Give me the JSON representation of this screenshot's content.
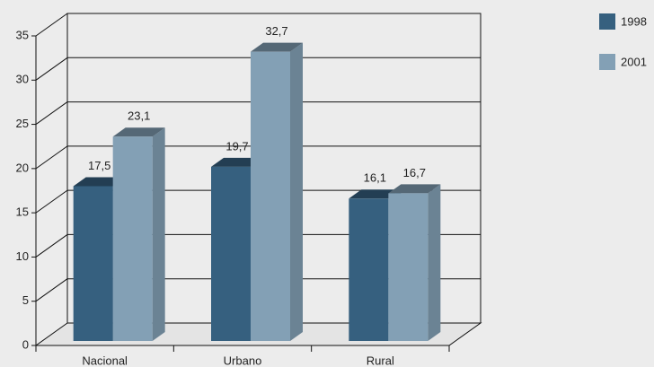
{
  "chart_data": {
    "type": "bar",
    "categories": [
      "Nacional",
      "Urbano",
      "Rural"
    ],
    "series": [
      {
        "name": "1998",
        "color": "#36607f",
        "values": [
          17.5,
          19.7,
          16.1
        ],
        "value_labels": [
          "17,5",
          "19,7",
          "16,1"
        ]
      },
      {
        "name": "2001",
        "color": "#83a0b5",
        "values": [
          23.1,
          32.7,
          16.7
        ],
        "value_labels": [
          "23,1",
          "32,7",
          "16,7"
        ]
      }
    ],
    "ylim": [
      0,
      35
    ],
    "yticks": [
      0,
      5,
      10,
      15,
      20,
      25,
      30,
      35
    ],
    "grid": true,
    "legend": "top-right"
  }
}
